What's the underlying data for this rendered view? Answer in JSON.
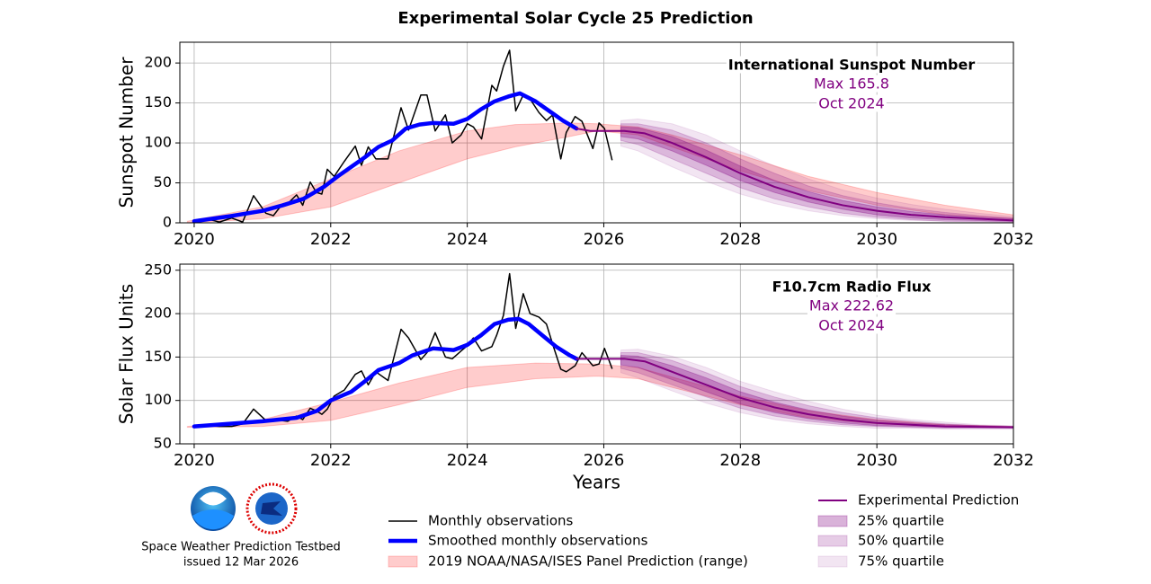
{
  "title": "Experimental Solar Cycle 25 Prediction",
  "footer": {
    "org": "Space Weather Prediction Testbed",
    "issued": "issued 12 Mar 2026"
  },
  "chart_data": [
    {
      "type": "line",
      "ylabel": "Sunspot Number",
      "grid": true,
      "xlim": [
        2019.79,
        2032
      ],
      "xticks": [
        2020,
        2022,
        2024,
        2026,
        2028,
        2030,
        2032
      ],
      "ylim": [
        0,
        226
      ],
      "yticks": [
        0,
        50,
        100,
        150,
        200
      ],
      "annotation": {
        "title": "International Sunspot Number",
        "max": "Max 165.8",
        "date": "Oct 2024"
      },
      "series": [
        {
          "name": "2019 NOAA/NASA/ISES Panel Prediction (range)",
          "color": "#ff0000",
          "alpha": 0.2,
          "x": [
            2019.9,
            2021,
            2022,
            2023,
            2024,
            2024.7,
            2025.5,
            2025.9,
            2026.5,
            2027,
            2028,
            2029,
            2030,
            2031,
            2032
          ],
          "lower": [
            0,
            5,
            20,
            50,
            80,
            95,
            108,
            115,
            110,
            95,
            65,
            40,
            22,
            10,
            5
          ],
          "upper": [
            2,
            20,
            55,
            90,
            115,
            123,
            125,
            124,
            120,
            110,
            85,
            58,
            38,
            22,
            10
          ]
        },
        {
          "name": "75% quartile",
          "color": "#800080",
          "alpha": 0.1,
          "x": [
            2026.25,
            2026.5,
            2027,
            2027.5,
            2028,
            2028.5,
            2029,
            2029.5,
            2030,
            2030.5,
            2031,
            2031.5,
            2032
          ],
          "lower": [
            96,
            90,
            70,
            52,
            36,
            24,
            15,
            9,
            5,
            3,
            2,
            1,
            1
          ],
          "upper": [
            128,
            130,
            124,
            110,
            90,
            71,
            55,
            41,
            31,
            23,
            17,
            12,
            8
          ]
        },
        {
          "name": "50% quartile",
          "color": "#800080",
          "alpha": 0.2,
          "x": [
            2026.25,
            2026.5,
            2027,
            2027.5,
            2028,
            2028.5,
            2029,
            2029.5,
            2030,
            2030.5,
            2031,
            2031.5,
            2032
          ],
          "lower": [
            103,
            98,
            80,
            62,
            44,
            30,
            20,
            12,
            7,
            4,
            2,
            2,
            1
          ],
          "upper": [
            124,
            124,
            116,
            100,
            80,
            62,
            46,
            34,
            25,
            18,
            13,
            9,
            6
          ]
        },
        {
          "name": "25% quartile",
          "color": "#800080",
          "alpha": 0.3,
          "x": [
            2026.25,
            2026.5,
            2027,
            2027.5,
            2028,
            2028.5,
            2029,
            2029.5,
            2030,
            2030.5,
            2031,
            2031.5,
            2032
          ],
          "lower": [
            108,
            105,
            90,
            72,
            53,
            38,
            26,
            17,
            10,
            6,
            4,
            3,
            2
          ],
          "upper": [
            120,
            119,
            108,
            91,
            71,
            53,
            39,
            28,
            20,
            14,
            10,
            7,
            5
          ]
        },
        {
          "name": "Monthly observations",
          "color": "#000000",
          "width": 1.5,
          "x": [
            2020.0,
            2020.18,
            2020.37,
            2020.55,
            2020.71,
            2020.87,
            2021.05,
            2021.16,
            2021.26,
            2021.37,
            2021.5,
            2021.59,
            2021.7,
            2021.79,
            2021.87,
            2021.95,
            2022.05,
            2022.2,
            2022.36,
            2022.45,
            2022.55,
            2022.66,
            2022.84,
            2023.03,
            2023.14,
            2023.32,
            2023.41,
            2023.53,
            2023.68,
            2023.78,
            2023.91,
            2024.0,
            2024.09,
            2024.21,
            2024.36,
            2024.43,
            2024.53,
            2024.62,
            2024.71,
            2024.82,
            2024.92,
            2025.05,
            2025.16,
            2025.25,
            2025.37,
            2025.45,
            2025.58,
            2025.68,
            2025.84,
            2025.93,
            2026.01,
            2026.12
          ],
          "values": [
            2,
            5,
            1,
            6,
            1,
            34,
            12,
            9,
            20,
            24,
            35,
            22,
            51,
            38,
            36,
            67,
            58,
            77,
            96,
            72,
            95,
            80,
            80,
            144,
            116,
            160,
            160,
            115,
            135,
            100,
            110,
            124,
            120,
            105,
            172,
            165,
            196,
            216,
            140,
            160,
            155,
            138,
            128,
            135,
            80,
            113,
            133,
            127,
            93,
            125,
            118,
            79
          ]
        },
        {
          "name": "Smoothed monthly observations",
          "color": "#0000ff",
          "width": 4.5,
          "x": [
            2020.0,
            2020.5,
            2021.0,
            2021.3,
            2021.6,
            2021.9,
            2022.1,
            2022.3,
            2022.5,
            2022.7,
            2022.9,
            2023.1,
            2023.3,
            2023.5,
            2023.8,
            2024.0,
            2024.2,
            2024.4,
            2024.6,
            2024.77,
            2025.0,
            2025.2,
            2025.4,
            2025.6
          ],
          "values": [
            2,
            8,
            15,
            22,
            30,
            45,
            58,
            70,
            82,
            95,
            103,
            118,
            123,
            125,
            124,
            130,
            142,
            152,
            158,
            162,
            152,
            140,
            128,
            118
          ]
        },
        {
          "name": "Experimental Prediction",
          "color": "#800080",
          "width": 2,
          "x": [
            2025.6,
            2025.8,
            2026.0,
            2026.3,
            2026.6,
            2027,
            2027.5,
            2028,
            2028.5,
            2029,
            2029.5,
            2030,
            2030.5,
            2031,
            2031.5,
            2032
          ],
          "values": [
            118,
            115,
            115,
            115,
            112,
            100,
            82,
            62,
            45,
            32,
            22,
            15,
            10,
            7,
            5,
            3
          ]
        }
      ]
    },
    {
      "type": "line",
      "ylabel": "Solar Flux Units",
      "xlabel": "Years",
      "grid": true,
      "xlim": [
        2019.79,
        2032
      ],
      "xticks": [
        2020,
        2022,
        2024,
        2026,
        2028,
        2030,
        2032
      ],
      "ylim": [
        50,
        257
      ],
      "yticks": [
        50,
        100,
        150,
        200,
        250
      ],
      "annotation": {
        "title": "F10.7cm Radio Flux",
        "max": "Max 222.62",
        "date": "Oct 2024"
      },
      "series": [
        {
          "color": "#ff0000",
          "alpha": 0.2,
          "x": [
            2019.9,
            2021,
            2022,
            2023,
            2024,
            2025,
            2025.9,
            2026.5,
            2027,
            2028,
            2029,
            2030,
            2031,
            2032
          ],
          "lower": [
            69,
            70,
            77,
            95,
            115,
            125,
            128,
            125,
            115,
            95,
            80,
            73,
            70,
            69
          ],
          "upper": [
            70,
            78,
            98,
            120,
            138,
            143,
            142,
            138,
            127,
            105,
            88,
            78,
            72,
            70
          ]
        },
        {
          "color": "#800080",
          "alpha": 0.1,
          "x": [
            2026.25,
            2026.5,
            2027,
            2027.5,
            2028,
            2028.5,
            2029,
            2029.5,
            2030,
            2030.5,
            2031,
            2031.5,
            2032
          ],
          "lower": [
            132,
            126,
            111,
            97,
            86,
            78,
            73,
            70,
            68,
            68,
            67,
            67,
            67
          ],
          "upper": [
            158,
            159,
            151,
            138,
            122,
            110,
            99,
            90,
            83,
            78,
            75,
            72,
            71
          ]
        },
        {
          "color": "#800080",
          "alpha": 0.2,
          "x": [
            2026.25,
            2026.5,
            2027,
            2027.5,
            2028,
            2028.5,
            2029,
            2029.5,
            2030,
            2030.5,
            2031,
            2031.5,
            2032
          ],
          "lower": [
            137,
            132,
            118,
            104,
            91,
            82,
            76,
            72,
            70,
            69,
            68,
            68,
            68
          ],
          "upper": [
            155,
            155,
            146,
            132,
            116,
            104,
            94,
            86,
            80,
            76,
            73,
            71,
            70
          ]
        },
        {
          "color": "#800080",
          "alpha": 0.3,
          "x": [
            2026.25,
            2026.5,
            2027,
            2027.5,
            2028,
            2028.5,
            2029,
            2029.5,
            2030,
            2030.5,
            2031,
            2031.5,
            2032
          ],
          "lower": [
            141,
            138,
            124,
            110,
            96,
            86,
            79,
            74,
            71,
            70,
            69,
            69,
            69
          ],
          "upper": [
            152,
            151,
            140,
            126,
            110,
            98,
            89,
            82,
            77,
            74,
            72,
            71,
            70
          ]
        },
        {
          "color": "#000000",
          "width": 1.5,
          "x": [
            2020.0,
            2020.18,
            2020.37,
            2020.55,
            2020.71,
            2020.87,
            2021.05,
            2021.16,
            2021.26,
            2021.37,
            2021.5,
            2021.59,
            2021.7,
            2021.79,
            2021.87,
            2021.95,
            2022.05,
            2022.2,
            2022.36,
            2022.45,
            2022.55,
            2022.66,
            2022.84,
            2023.03,
            2023.14,
            2023.32,
            2023.41,
            2023.53,
            2023.68,
            2023.78,
            2023.91,
            2024.0,
            2024.09,
            2024.21,
            2024.36,
            2024.43,
            2024.53,
            2024.62,
            2024.71,
            2024.82,
            2024.92,
            2025.05,
            2025.16,
            2025.25,
            2025.37,
            2025.45,
            2025.58,
            2025.68,
            2025.84,
            2025.93,
            2026.01,
            2026.12
          ],
          "values": [
            70,
            71,
            70,
            70,
            73,
            90,
            77,
            76,
            77,
            76,
            82,
            78,
            91,
            88,
            84,
            90,
            105,
            112,
            130,
            134,
            118,
            133,
            123,
            182,
            172,
            147,
            155,
            178,
            150,
            148,
            157,
            163,
            172,
            157,
            162,
            175,
            198,
            246,
            183,
            223,
            200,
            196,
            188,
            165,
            136,
            133,
            140,
            155,
            140,
            142,
            160,
            137
          ]
        },
        {
          "color": "#0000ff",
          "width": 4.5,
          "x": [
            2020.0,
            2020.5,
            2021.0,
            2021.5,
            2021.8,
            2022.0,
            2022.3,
            2022.5,
            2022.7,
            2023.0,
            2023.2,
            2023.5,
            2023.8,
            2024.0,
            2024.2,
            2024.4,
            2024.6,
            2024.75,
            2024.9,
            2025.1,
            2025.3,
            2025.5,
            2025.6
          ],
          "values": [
            70,
            73,
            76,
            80,
            88,
            100,
            110,
            122,
            135,
            143,
            152,
            160,
            158,
            164,
            175,
            188,
            193,
            194,
            188,
            175,
            162,
            152,
            148
          ]
        },
        {
          "color": "#800080",
          "width": 2,
          "x": [
            2025.6,
            2026.0,
            2026.3,
            2026.6,
            2027,
            2027.5,
            2028,
            2028.5,
            2029,
            2029.5,
            2030,
            2030.5,
            2031,
            2031.5,
            2032
          ],
          "values": [
            148,
            148,
            148,
            145,
            133,
            118,
            103,
            92,
            84,
            78,
            74,
            72,
            70,
            69.5,
            69
          ]
        }
      ]
    }
  ]
}
